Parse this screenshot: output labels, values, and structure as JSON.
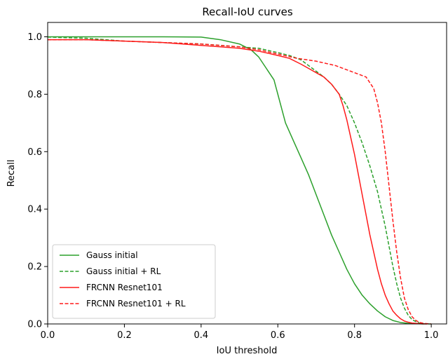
{
  "chart_data": {
    "type": "line",
    "title": "Recall-IoU curves",
    "xlabel": "IoU threshold",
    "ylabel": "Recall",
    "xlim": [
      0.0,
      1.04
    ],
    "ylim": [
      0.0,
      1.05
    ],
    "xticks": [
      "0.0",
      "0.2",
      "0.4",
      "0.6",
      "0.8",
      "1.0"
    ],
    "yticks": [
      "0.0",
      "0.2",
      "0.4",
      "0.6",
      "0.8",
      "1.0"
    ],
    "grid": false,
    "legend_position": "lower-left",
    "series": [
      {
        "name": "Gauss initial",
        "color": "#2ca02c",
        "linestyle": "solid",
        "x": [
          0.0,
          0.1,
          0.2,
          0.3,
          0.4,
          0.45,
          0.5,
          0.53,
          0.55,
          0.57,
          0.59,
          0.6,
          0.61,
          0.62,
          0.64,
          0.66,
          0.68,
          0.7,
          0.72,
          0.74,
          0.76,
          0.78,
          0.8,
          0.82,
          0.84,
          0.86,
          0.88,
          0.9,
          0.92,
          0.94,
          0.96,
          0.98
        ],
        "y": [
          1.0,
          1.0,
          1.0,
          1.0,
          0.999,
          0.99,
          0.975,
          0.955,
          0.93,
          0.89,
          0.85,
          0.8,
          0.75,
          0.7,
          0.64,
          0.58,
          0.52,
          0.45,
          0.38,
          0.31,
          0.25,
          0.19,
          0.14,
          0.1,
          0.07,
          0.045,
          0.025,
          0.012,
          0.005,
          0.002,
          0.001,
          0.0
        ]
      },
      {
        "name": "Gauss initial + RL",
        "color": "#2ca02c",
        "linestyle": "dashed",
        "x": [
          0.0,
          0.1,
          0.2,
          0.3,
          0.4,
          0.5,
          0.55,
          0.6,
          0.63,
          0.66,
          0.68,
          0.7,
          0.72,
          0.74,
          0.76,
          0.78,
          0.8,
          0.82,
          0.84,
          0.86,
          0.87,
          0.88,
          0.89,
          0.9,
          0.91,
          0.92,
          0.93,
          0.94,
          0.95,
          0.96,
          0.97,
          0.98,
          0.99,
          1.0
        ],
        "y": [
          0.999,
          0.995,
          0.985,
          0.98,
          0.975,
          0.965,
          0.96,
          0.945,
          0.935,
          0.92,
          0.9,
          0.88,
          0.86,
          0.835,
          0.8,
          0.76,
          0.7,
          0.63,
          0.55,
          0.46,
          0.4,
          0.34,
          0.27,
          0.2,
          0.14,
          0.09,
          0.055,
          0.03,
          0.015,
          0.008,
          0.003,
          0.001,
          0.0,
          0.0
        ]
      },
      {
        "name": "FRCNN Resnet101",
        "color": "#ff1a1a",
        "linestyle": "solid",
        "x": [
          0.0,
          0.1,
          0.2,
          0.3,
          0.4,
          0.45,
          0.5,
          0.55,
          0.6,
          0.63,
          0.66,
          0.68,
          0.7,
          0.72,
          0.74,
          0.76,
          0.77,
          0.78,
          0.79,
          0.8,
          0.81,
          0.82,
          0.83,
          0.84,
          0.85,
          0.86,
          0.87,
          0.88,
          0.89,
          0.9,
          0.91,
          0.92,
          0.93,
          0.94,
          0.95,
          0.96,
          0.97,
          0.98,
          0.99
        ],
        "y": [
          0.99,
          0.99,
          0.985,
          0.98,
          0.97,
          0.965,
          0.96,
          0.95,
          0.935,
          0.925,
          0.905,
          0.89,
          0.875,
          0.86,
          0.835,
          0.8,
          0.76,
          0.71,
          0.65,
          0.59,
          0.52,
          0.45,
          0.38,
          0.31,
          0.25,
          0.19,
          0.14,
          0.1,
          0.07,
          0.045,
          0.03,
          0.018,
          0.01,
          0.006,
          0.003,
          0.002,
          0.001,
          0.0,
          0.0
        ]
      },
      {
        "name": "FRCNN Resnet101 + RL",
        "color": "#ff1a1a",
        "linestyle": "dashed",
        "x": [
          0.0,
          0.1,
          0.2,
          0.3,
          0.4,
          0.5,
          0.55,
          0.6,
          0.65,
          0.7,
          0.75,
          0.8,
          0.83,
          0.85,
          0.86,
          0.87,
          0.88,
          0.89,
          0.9,
          0.91,
          0.92,
          0.93,
          0.94,
          0.95,
          0.96,
          0.97,
          0.98,
          0.99,
          1.0
        ],
        "y": [
          0.99,
          0.99,
          0.985,
          0.98,
          0.975,
          0.965,
          0.955,
          0.94,
          0.925,
          0.915,
          0.9,
          0.875,
          0.86,
          0.82,
          0.77,
          0.7,
          0.6,
          0.48,
          0.36,
          0.25,
          0.16,
          0.09,
          0.05,
          0.025,
          0.012,
          0.005,
          0.002,
          0.001,
          0.0
        ]
      }
    ]
  }
}
